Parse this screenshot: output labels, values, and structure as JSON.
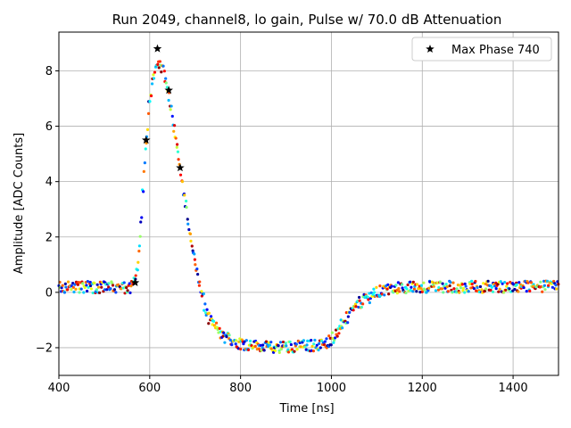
{
  "chart_data": {
    "type": "scatter",
    "title": "Run 2049, channel8, lo gain, Pulse w/ 70.0 dB Attenuation",
    "xlabel": "Time [ns]",
    "ylabel": "Amplitude [ADC Counts]",
    "xlim": [
      400,
      1500
    ],
    "ylim": [
      -3,
      9.4
    ],
    "xticks": [
      400,
      600,
      800,
      1000,
      1200,
      1400
    ],
    "yticks": [
      -2,
      0,
      2,
      4,
      6,
      8
    ],
    "grid": true,
    "legend": {
      "position": "top-right",
      "entries": [
        "Max Phase 740"
      ]
    },
    "colormap": "jet",
    "pulse_shape": {
      "description": "average waveform traced by the colored sample points",
      "x": [
        400,
        520,
        555,
        568,
        578,
        592,
        605,
        618,
        630,
        643,
        655,
        668,
        682,
        700,
        725,
        760,
        800,
        860,
        920,
        980,
        1000,
        1030,
        1060,
        1100,
        1140,
        1200,
        1300,
        1400,
        1500
      ],
      "y": [
        0.2,
        0.18,
        0.15,
        0.4,
        1.8,
        5.5,
        7.6,
        8.3,
        8.0,
        7.0,
        5.8,
        4.4,
        2.8,
        1.0,
        -0.8,
        -1.6,
        -1.85,
        -2.0,
        -1.95,
        -1.9,
        -1.7,
        -1.0,
        -0.4,
        0.0,
        0.15,
        0.2,
        0.2,
        0.2,
        0.2
      ]
    },
    "max_phase_series": {
      "name": "Max Phase 740",
      "marker": "star",
      "color": "#000000",
      "x": [
        568,
        592,
        617,
        642,
        667
      ],
      "y": [
        0.35,
        5.5,
        8.8,
        7.3,
        4.5
      ]
    }
  }
}
